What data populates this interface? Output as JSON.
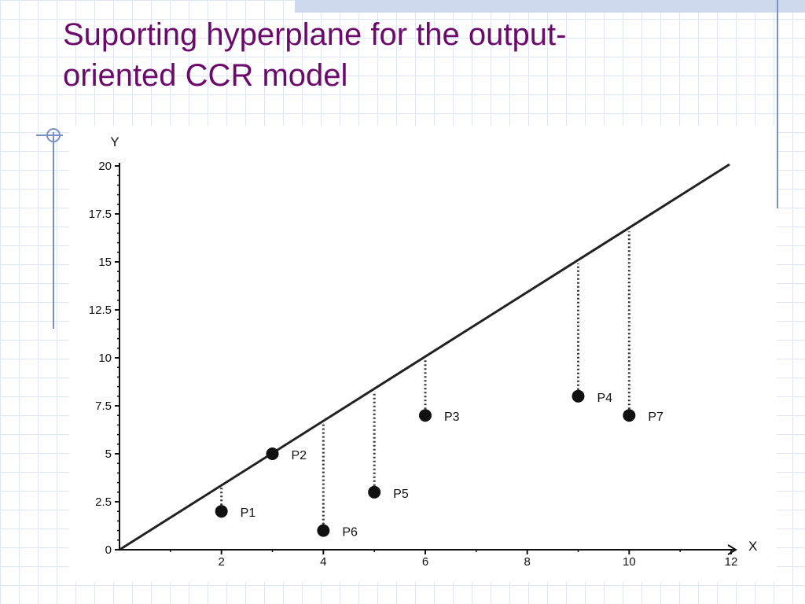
{
  "slide": {
    "title_line1": "Suporting hyperplane for the output-",
    "title_line2": "oriented CCR model"
  },
  "colors": {
    "title": "#6b0a6b",
    "grid": "#dfe6f3",
    "accent": "#7a8fc4"
  },
  "chart_data": {
    "type": "scatter",
    "xlabel": "X",
    "ylabel": "Y",
    "xlim": [
      0,
      12
    ],
    "ylim": [
      0,
      20
    ],
    "x_ticks": [
      2,
      4,
      6,
      8,
      10,
      12
    ],
    "y_ticks": [
      "0",
      "2.5",
      "5",
      "7.5",
      "10",
      "12.5",
      "15",
      "17.5",
      "20"
    ],
    "points": [
      {
        "label": "P1",
        "x": 2,
        "y": 2
      },
      {
        "label": "P2",
        "x": 3,
        "y": 5
      },
      {
        "label": "P3",
        "x": 6,
        "y": 7
      },
      {
        "label": "P4",
        "x": 9,
        "y": 8
      },
      {
        "label": "P5",
        "x": 5,
        "y": 3
      },
      {
        "label": "P6",
        "x": 4,
        "y": 1
      },
      {
        "label": "P7",
        "x": 10,
        "y": 7
      }
    ],
    "frontier_line": {
      "x": [
        0,
        12
      ],
      "y": [
        0,
        20
      ]
    },
    "projections": "dotted vertical segments from points up to the line"
  }
}
